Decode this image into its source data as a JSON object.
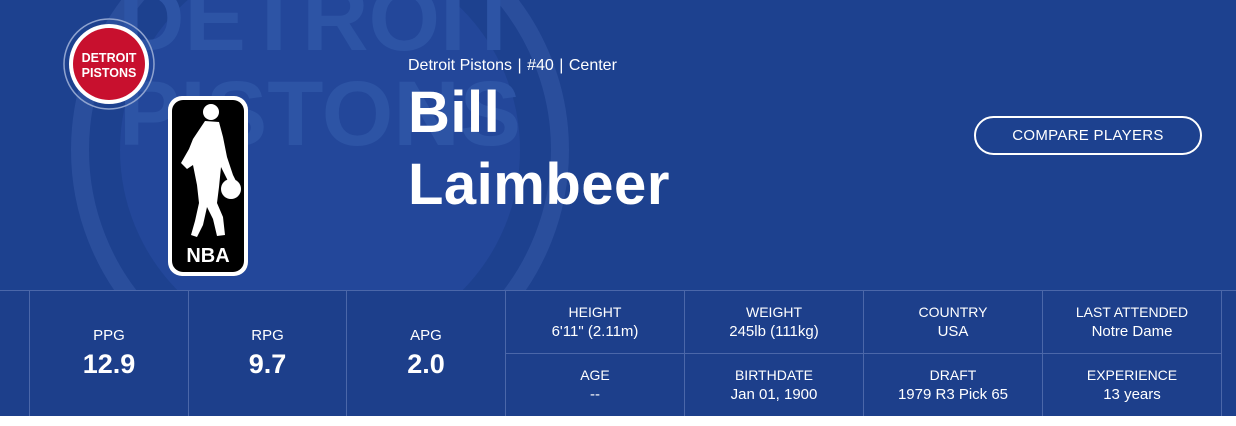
{
  "player": {
    "team": "Detroit Pistons",
    "number": "#40",
    "position": "Center",
    "first_name": "Bill",
    "last_name": "Laimbeer",
    "separator": "|"
  },
  "logos": {
    "team_logo_line1": "DETROIT",
    "team_logo_line2": "PISTONS",
    "watermark_line1": "DETROIT",
    "watermark_line2": "PISTONS",
    "league_logo_text": "NBA"
  },
  "actions": {
    "compare_label": "COMPARE PLAYERS"
  },
  "stats": {
    "ppg": {
      "label": "PPG",
      "value": "12.9"
    },
    "rpg": {
      "label": "RPG",
      "value": "9.7"
    },
    "apg": {
      "label": "APG",
      "value": "2.0"
    }
  },
  "details": {
    "height": {
      "label": "HEIGHT",
      "value": "6'11\" (2.11m)"
    },
    "weight": {
      "label": "WEIGHT",
      "value": "245lb (111kg)"
    },
    "country": {
      "label": "COUNTRY",
      "value": "USA"
    },
    "last_attended": {
      "label": "LAST ATTENDED",
      "value": "Notre Dame"
    },
    "age": {
      "label": "AGE",
      "value": "--"
    },
    "birthdate": {
      "label": "BIRTHDATE",
      "value": "Jan 01, 1900"
    },
    "draft": {
      "label": "DRAFT",
      "value": "1979 R3 Pick 65"
    },
    "experience": {
      "label": "EXPERIENCE",
      "value": "13 years"
    }
  },
  "colors": {
    "hero_bg": "#1d418f",
    "stats_bg": "#1d3f8b",
    "divider": "#4b67a9",
    "pistons_red": "#c8102e",
    "nba_black": "#000000"
  }
}
